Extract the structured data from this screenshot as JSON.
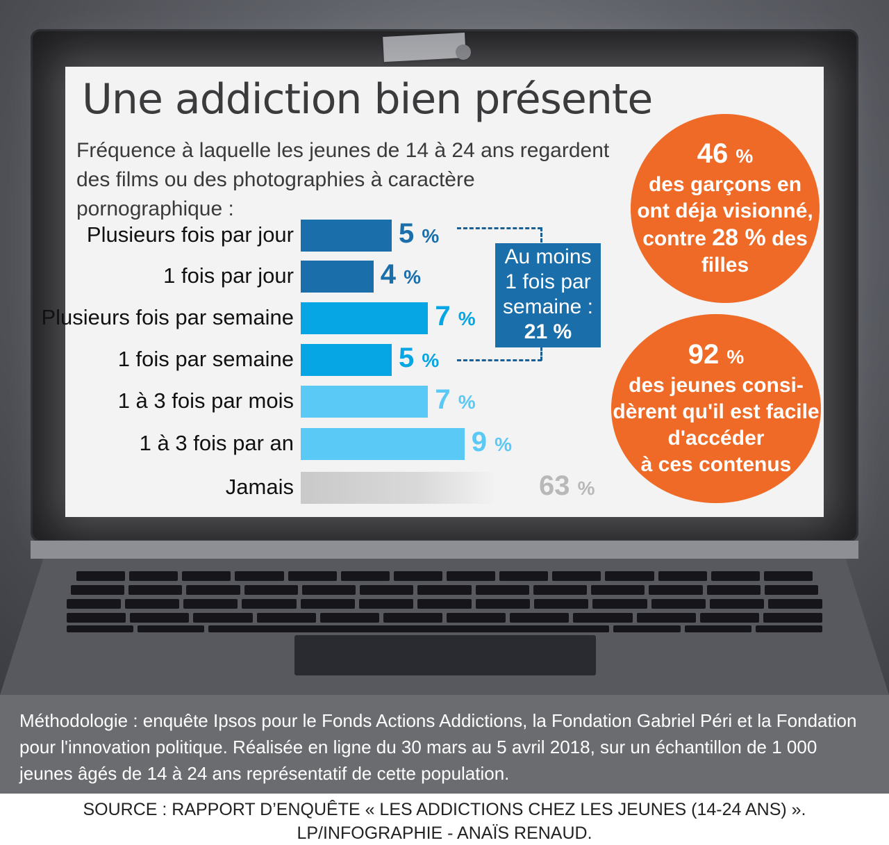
{
  "title": "Une addiction bien présente",
  "subtitle": "Fréquence à laquelle les jeunes de 14 à 24 ans regardent des films ou des photographies à caractère pornographique :",
  "bracket_box": {
    "line1": "Au moins",
    "line2": "1 fois par",
    "line3": "semaine :",
    "value": "21 %"
  },
  "circle_boys": {
    "value": "46",
    "unit": "%",
    "line1": "des garçons en",
    "line2": "ont déja visionné,",
    "line3a": "contre",
    "line3b": "28 %",
    "line3c": "des",
    "line4": "filles"
  },
  "circle_access": {
    "value": "92",
    "unit": "%",
    "line1": "des jeunes consi-",
    "line2": "dèrent qu'il est facile",
    "line3": "d'accéder",
    "line4": "à ces contenus"
  },
  "methodology": "Méthodologie : enquête Ipsos pour le Fonds Actions Addictions, la Fondation Gabriel Péri et la Fondation pour l'innovation politique. Réalisée en ligne du 30 mars au 5 avril 2018, sur un échantillon de 1 000 jeunes âgés de 14 à 24 ans représentatif de cette population.",
  "source_line1": "SOURCE : RAPPORT D’ENQUÊTE « LES ADDICTIONS CHEZ LES JEUNES (14-24 ANS) ».",
  "source_line2": "LP/INFOGRAPHIE - ANAÏS RENAUD.",
  "chart_data": {
    "type": "bar",
    "orientation": "horizontal",
    "categories": [
      "Plusieurs fois par jour",
      "1 fois par jour",
      "Plusieurs fois par semaine",
      "1 fois par semaine",
      "1 à 3 fois par mois",
      "1 à 3 fois par an",
      "Jamais"
    ],
    "values": [
      5,
      4,
      7,
      5,
      7,
      9,
      63
    ],
    "value_labels": [
      "5",
      "4",
      "7",
      "5",
      "7",
      "9",
      "63"
    ],
    "unit": "%",
    "colors": [
      "#1a6eaa",
      "#1a6eaa",
      "#05a6e3",
      "#05a6e3",
      "#5bc9f5",
      "#5bc9f5",
      "#c9c9c9"
    ],
    "label_colors": [
      "#1a6eaa",
      "#1a6eaa",
      "#05a6e3",
      "#05a6e3",
      "#5bc9f5",
      "#5bc9f5",
      "#b8b8b8"
    ]
  }
}
